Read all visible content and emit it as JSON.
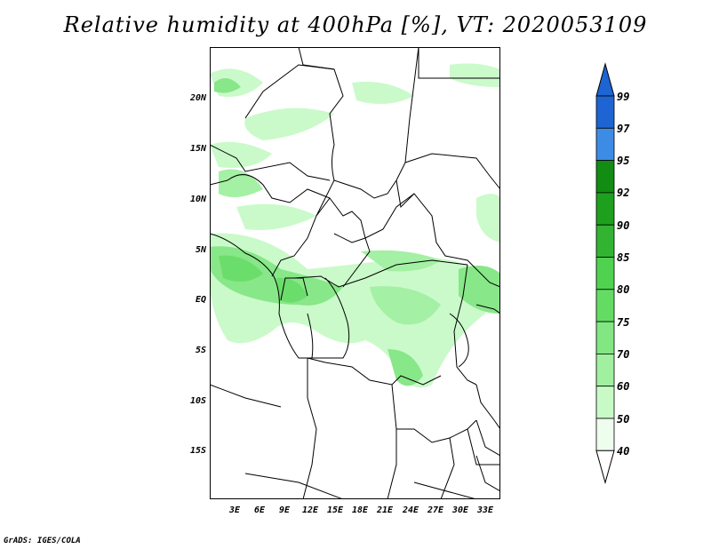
{
  "title": "Relative humidity at 400hPa [%], VT: 2020053109",
  "footer": "GrADS: IGES/COLA",
  "lat_labels": [
    "20N",
    "15N",
    "10N",
    "5N",
    "EQ",
    "5S",
    "10S",
    "15S"
  ],
  "lon_labels": [
    "3E",
    "6E",
    "9E",
    "12E",
    "15E",
    "18E",
    "21E",
    "24E",
    "27E",
    "30E",
    "33E"
  ],
  "colorbar": {
    "labels": [
      "99",
      "97",
      "95",
      "92",
      "90",
      "85",
      "80",
      "75",
      "70",
      "60",
      "50",
      "40"
    ],
    "colors": [
      "#1e64d2",
      "#1e64d2",
      "#3c8ce6",
      "#128c12",
      "#1ea01e",
      "#32b432",
      "#50d250",
      "#64dc64",
      "#82e682",
      "#a0f0a0",
      "#c8fac8",
      "#eefeee"
    ]
  }
}
